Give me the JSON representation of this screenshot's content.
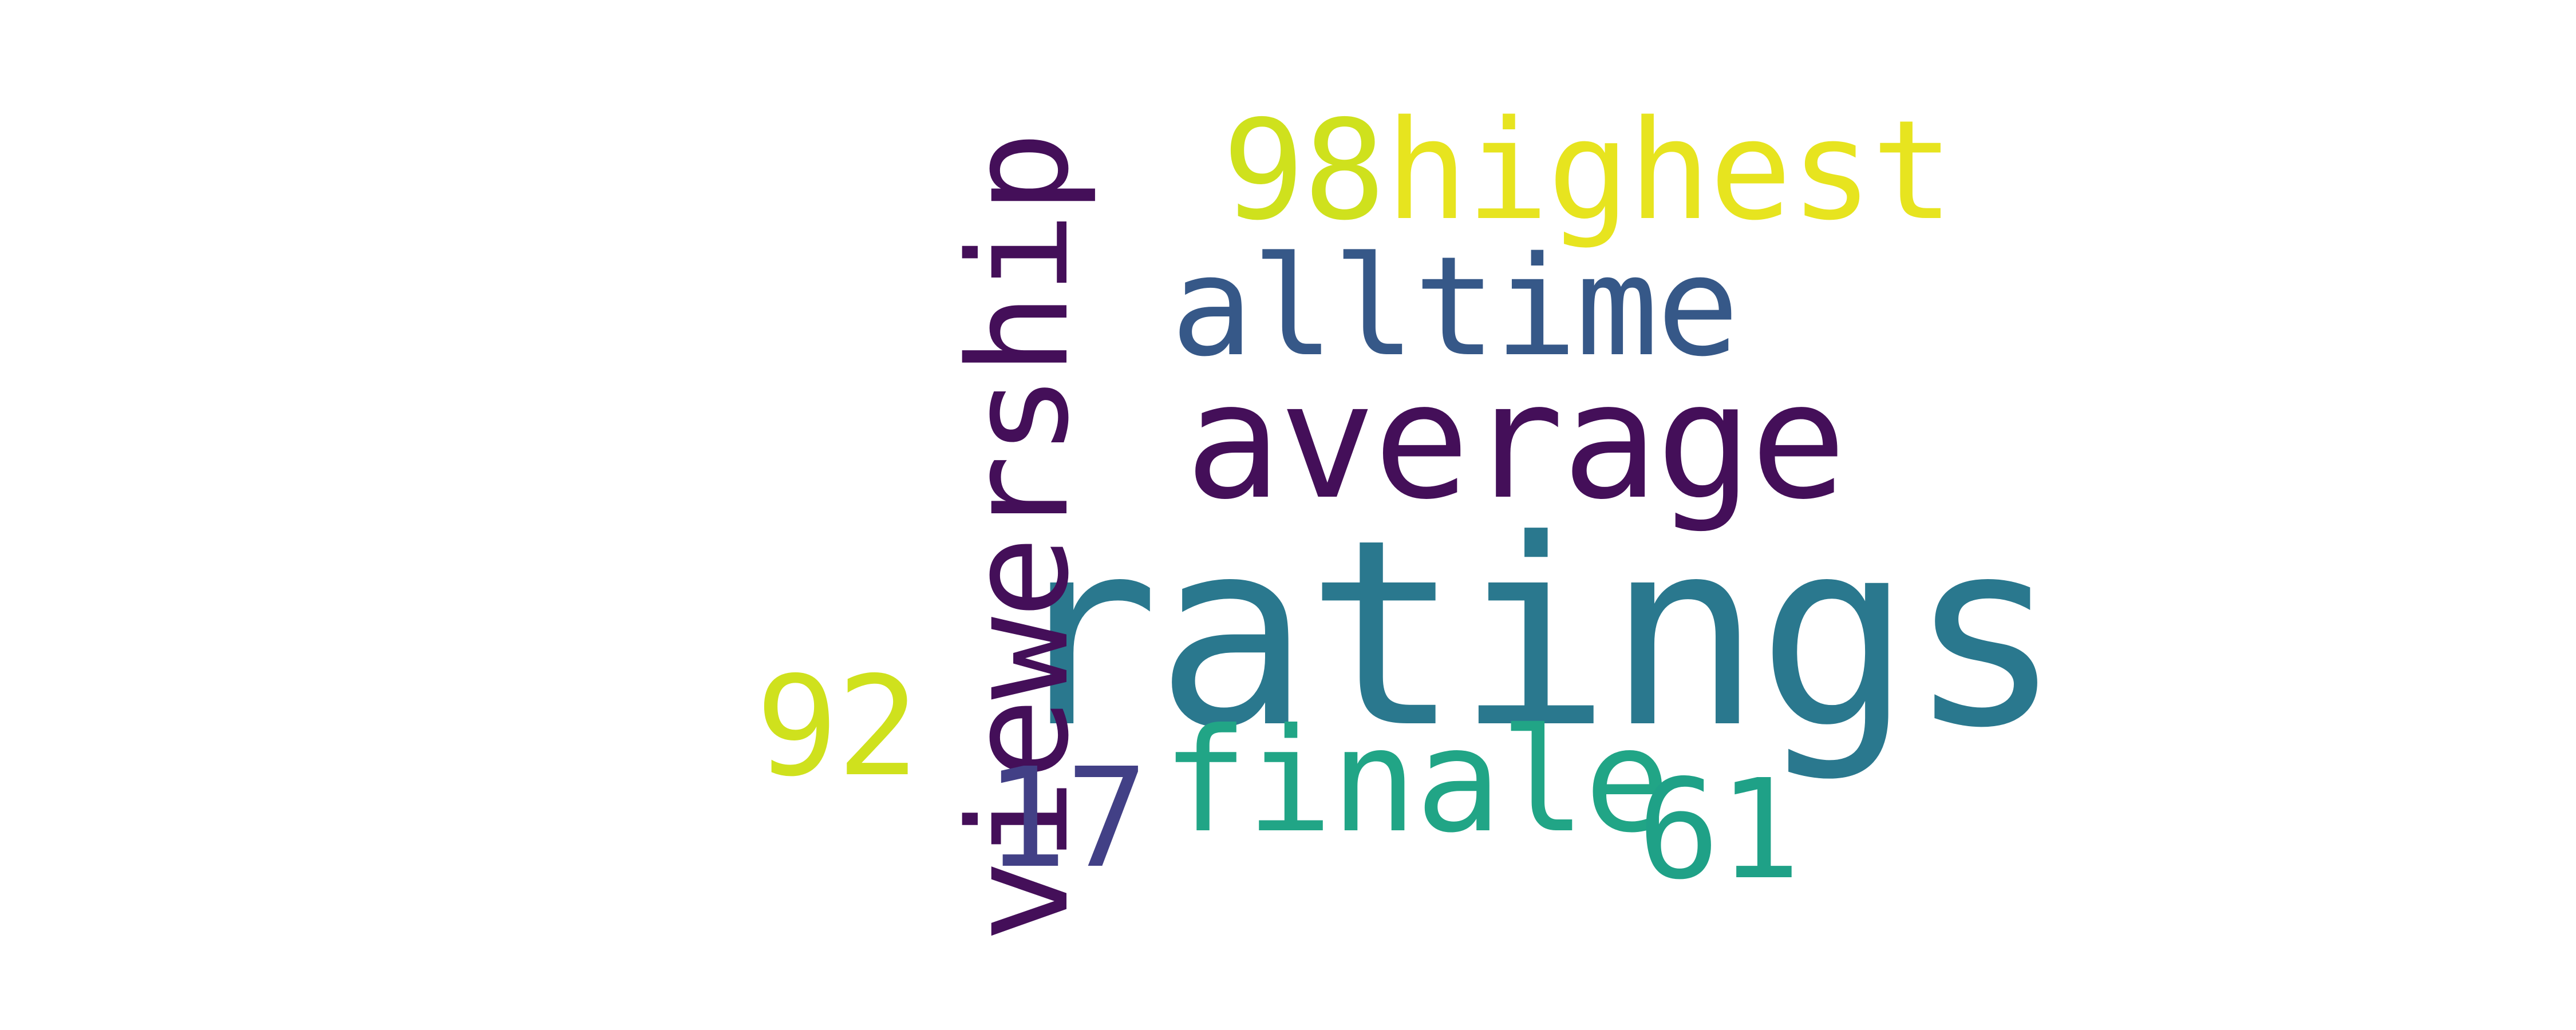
{
  "wordcloud": {
    "words": {
      "ratings": {
        "text": "ratings",
        "color": "#2a788e"
      },
      "average": {
        "text": "average",
        "color": "#440f59"
      },
      "alltime": {
        "text": "alltime",
        "color": "#365888"
      },
      "highest": {
        "text": "highest",
        "color": "#e7e41f"
      },
      "n98": {
        "text": "98",
        "color": "#cfe11d"
      },
      "viewership": {
        "text": "viewership",
        "color": "#440f59"
      },
      "finale": {
        "text": "finale",
        "color": "#21a586"
      },
      "n92": {
        "text": "92",
        "color": "#cfe11d"
      },
      "n17": {
        "text": "17",
        "color": "#424086"
      },
      "n61": {
        "text": "61",
        "color": "#1fa187"
      }
    }
  }
}
